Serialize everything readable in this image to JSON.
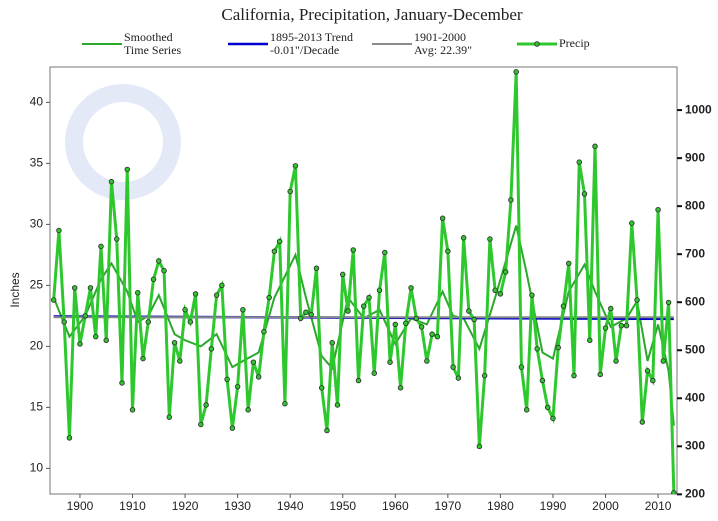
{
  "chart_data": {
    "type": "line",
    "title": "California, Precipitation, January-December",
    "ylabel": "Inches",
    "xlim": [
      1894.3,
      2013.6
    ],
    "xticks": [
      1900,
      1910,
      1920,
      1930,
      1940,
      1950,
      1960,
      1970,
      1980,
      1990,
      2000,
      2010
    ],
    "ylim": [
      7.9,
      42.9
    ],
    "yticks": [
      10,
      15,
      20,
      25,
      30,
      35,
      40
    ],
    "y2lim": [
      200.7,
      1089.7
    ],
    "y2ticks": [
      200,
      300,
      400,
      500,
      600,
      700,
      800,
      900,
      1000
    ],
    "series": [
      {
        "name": "Smoothed\nTime Series",
        "color": "#2aa82a",
        "x": [
          1895,
          1898,
          1901,
          1904,
          1906,
          1909,
          1911,
          1913,
          1915,
          1918,
          1920,
          1923,
          1926,
          1929,
          1931,
          1934,
          1937,
          1941,
          1943,
          1946,
          1948,
          1951,
          1954,
          1957,
          1960,
          1963,
          1966,
          1969,
          1971,
          1973,
          1976,
          1979,
          1983,
          1985,
          1988,
          1990,
          1993,
          1996,
          1998,
          2001,
          2004,
          2006,
          2008,
          2010,
          2012,
          2013
        ],
        "values": [
          24,
          20.8,
          22.5,
          25.5,
          26.8,
          24.5,
          22,
          22.5,
          24.2,
          21,
          20.5,
          20,
          21,
          18.3,
          18.8,
          19.5,
          24,
          27.5,
          24,
          19.2,
          18.2,
          24,
          22.3,
          23,
          20.2,
          22.3,
          21.8,
          24.5,
          22.5,
          22.3,
          19.8,
          24,
          29.9,
          26,
          19.5,
          19,
          24.5,
          26.7,
          24.5,
          21.6,
          22.3,
          23.7,
          18.8,
          21.8,
          18,
          13.5
        ]
      },
      {
        "name": "1895-2013 Trend\n-0.01\"/Decade",
        "color": "#0000cc",
        "x": [
          1895,
          2013
        ],
        "values": [
          22.45,
          22.25
        ]
      },
      {
        "name": "1901-2000\nAvg: 22.39\"",
        "color": "#8a8a8a",
        "x": [
          1895,
          2013
        ],
        "values": [
          22.39,
          22.39
        ]
      },
      {
        "name": "Precip",
        "color": "#2ec82e",
        "marker": true,
        "x": [
          1895,
          1896,
          1897,
          1898,
          1899,
          1900,
          1901,
          1902,
          1903,
          1904,
          1905,
          1906,
          1907,
          1908,
          1909,
          1910,
          1911,
          1912,
          1913,
          1914,
          1915,
          1916,
          1917,
          1918,
          1919,
          1920,
          1921,
          1922,
          1923,
          1924,
          1925,
          1926,
          1927,
          1928,
          1929,
          1930,
          1931,
          1932,
          1933,
          1934,
          1935,
          1936,
          1937,
          1938,
          1939,
          1940,
          1941,
          1942,
          1943,
          1944,
          1945,
          1946,
          1947,
          1948,
          1949,
          1950,
          1951,
          1952,
          1953,
          1954,
          1955,
          1956,
          1957,
          1958,
          1959,
          1960,
          1961,
          1962,
          1963,
          1964,
          1965,
          1966,
          1967,
          1968,
          1969,
          1970,
          1971,
          1972,
          1973,
          1974,
          1975,
          1976,
          1977,
          1978,
          1979,
          1980,
          1981,
          1982,
          1983,
          1984,
          1985,
          1986,
          1987,
          1988,
          1989,
          1990,
          1991,
          1992,
          1993,
          1994,
          1995,
          1996,
          1997,
          1998,
          1999,
          2000,
          2001,
          2002,
          2003,
          2004,
          2005,
          2006,
          2007,
          2008,
          2009,
          2010,
          2011,
          2012,
          2013
        ],
        "values": [
          23.8,
          29.5,
          22,
          12.5,
          24.8,
          20.2,
          22.5,
          24.8,
          20.8,
          28.2,
          20.5,
          33.5,
          28.8,
          17,
          34.5,
          14.8,
          24.4,
          19,
          22,
          25.5,
          27,
          26.2,
          14.2,
          20.3,
          18.8,
          23,
          22,
          24.3,
          13.6,
          15.2,
          19.8,
          24.2,
          25,
          17.3,
          13.3,
          16.7,
          23,
          14.8,
          18.7,
          17.5,
          21.2,
          24,
          27.8,
          28.6,
          15.3,
          32.7,
          34.8,
          22.3,
          22.8,
          22.6,
          26.4,
          16.6,
          13.1,
          20.3,
          15.2,
          25.9,
          22.9,
          27.9,
          17.2,
          23.3,
          24,
          17.8,
          24.6,
          27.7,
          18.7,
          21.8,
          16.6,
          21.9,
          24.8,
          22.3,
          21.6,
          18.8,
          21,
          20.8,
          30.5,
          27.8,
          18.3,
          17.4,
          28.9,
          22.9,
          22.2,
          11.8,
          17.6,
          28.8,
          24.6,
          24.3,
          26.1,
          32,
          42.5,
          18.3,
          14.8,
          24.2,
          19.8,
          17.2,
          15,
          14.1,
          19.9,
          23.3,
          26.8,
          17.6,
          35.1,
          32.5,
          20.5,
          36.4,
          17.7,
          21.5,
          23.1,
          18.8,
          21.7,
          21.7,
          30.1,
          23.8,
          13.8,
          18,
          17.2,
          31.2,
          18.8,
          23.6,
          8
        ]
      }
    ]
  }
}
